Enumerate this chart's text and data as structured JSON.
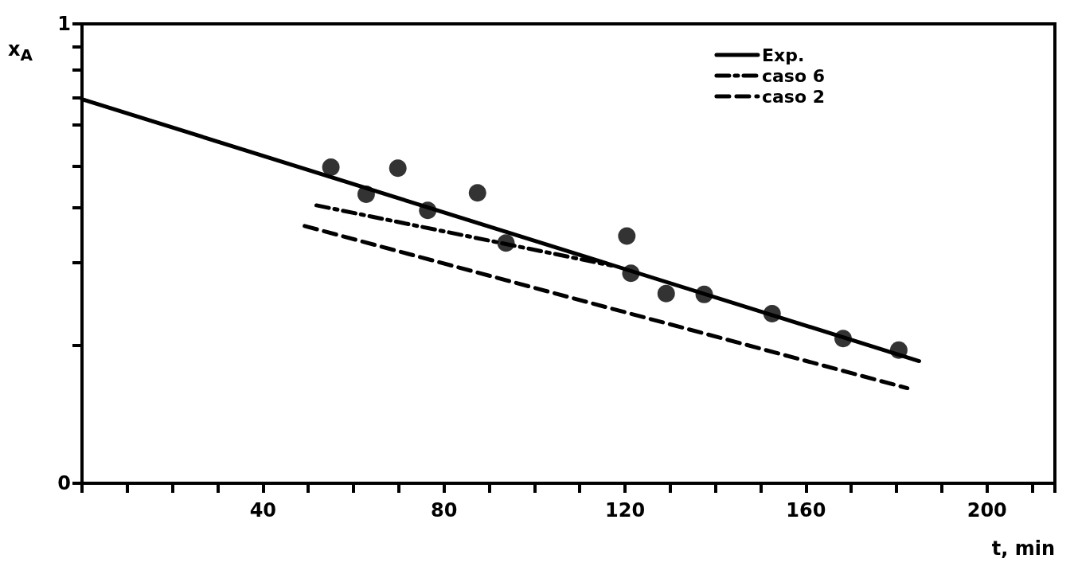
{
  "chart_data": {
    "type": "line",
    "xlabel": "t, min",
    "ylabel": "x$_{A}$",
    "xlim": [
      0,
      215
    ],
    "xticks": [
      {
        "value": 10,
        "label": null
      },
      {
        "value": 20,
        "label": null
      },
      {
        "value": 30,
        "label": null
      },
      40,
      {
        "value": 50,
        "label": null
      },
      {
        "value": 60,
        "label": null
      },
      {
        "value": 70,
        "label": null
      },
      80,
      {
        "value": 90,
        "label": null
      },
      {
        "value": 100,
        "label": null
      },
      {
        "value": 110,
        "label": null
      },
      120,
      {
        "value": 130,
        "label": null
      },
      {
        "value": 140,
        "label": null
      },
      {
        "value": 150,
        "label": null
      },
      160,
      {
        "value": 170,
        "label": null
      },
      {
        "value": 180,
        "label": null
      },
      {
        "value": 190,
        "label": null
      },
      200,
      {
        "value": 210,
        "label": null
      }
    ],
    "ylim": [
      0,
      1
    ],
    "yticks": [
      0,
      {
        "value": 0.3,
        "label": null
      },
      {
        "value": 0.48,
        "label": null
      },
      {
        "value": 0.6,
        "label": null
      },
      {
        "value": 0.69,
        "label": null
      },
      {
        "value": 0.78,
        "label": null
      },
      {
        "value": 0.84,
        "label": null
      },
      {
        "value": 0.9,
        "label": null
      },
      {
        "value": 0.95,
        "label": null
      },
      1
    ],
    "grid": false,
    "legend": "top right",
    "series": [
      {
        "name": "Exp.",
        "color": "#000000",
        "line_style": "solid",
        "marker": "none",
        "x": [
          0,
          185
        ],
        "values": [
          0.836,
          0.266
        ]
      },
      {
        "name": "caso 6",
        "color": "#000000",
        "line_style": "dashdot",
        "marker": "none",
        "x": [
          51.8,
          117
        ],
        "values": [
          0.605,
          0.474
        ]
      },
      {
        "name": "caso 2",
        "color": "#000000",
        "line_style": "dashed",
        "marker": "none",
        "x": [
          49.2,
          182.4
        ],
        "values": [
          0.56,
          0.207
        ]
      },
      {
        "type": "scatter",
        "color": "#000000",
        "marker": "circle",
        "x": [
          55.0,
          62.8,
          69.8,
          76.4,
          87.4,
          93.7,
          120.4,
          121.3,
          129.1,
          137.5,
          152.5,
          168.2,
          180.5
        ],
        "values": [
          0.688,
          0.629,
          0.686,
          0.594,
          0.632,
          0.523,
          0.538,
          0.457,
          0.413,
          0.411,
          0.369,
          0.315,
          0.29
        ]
      }
    ]
  }
}
